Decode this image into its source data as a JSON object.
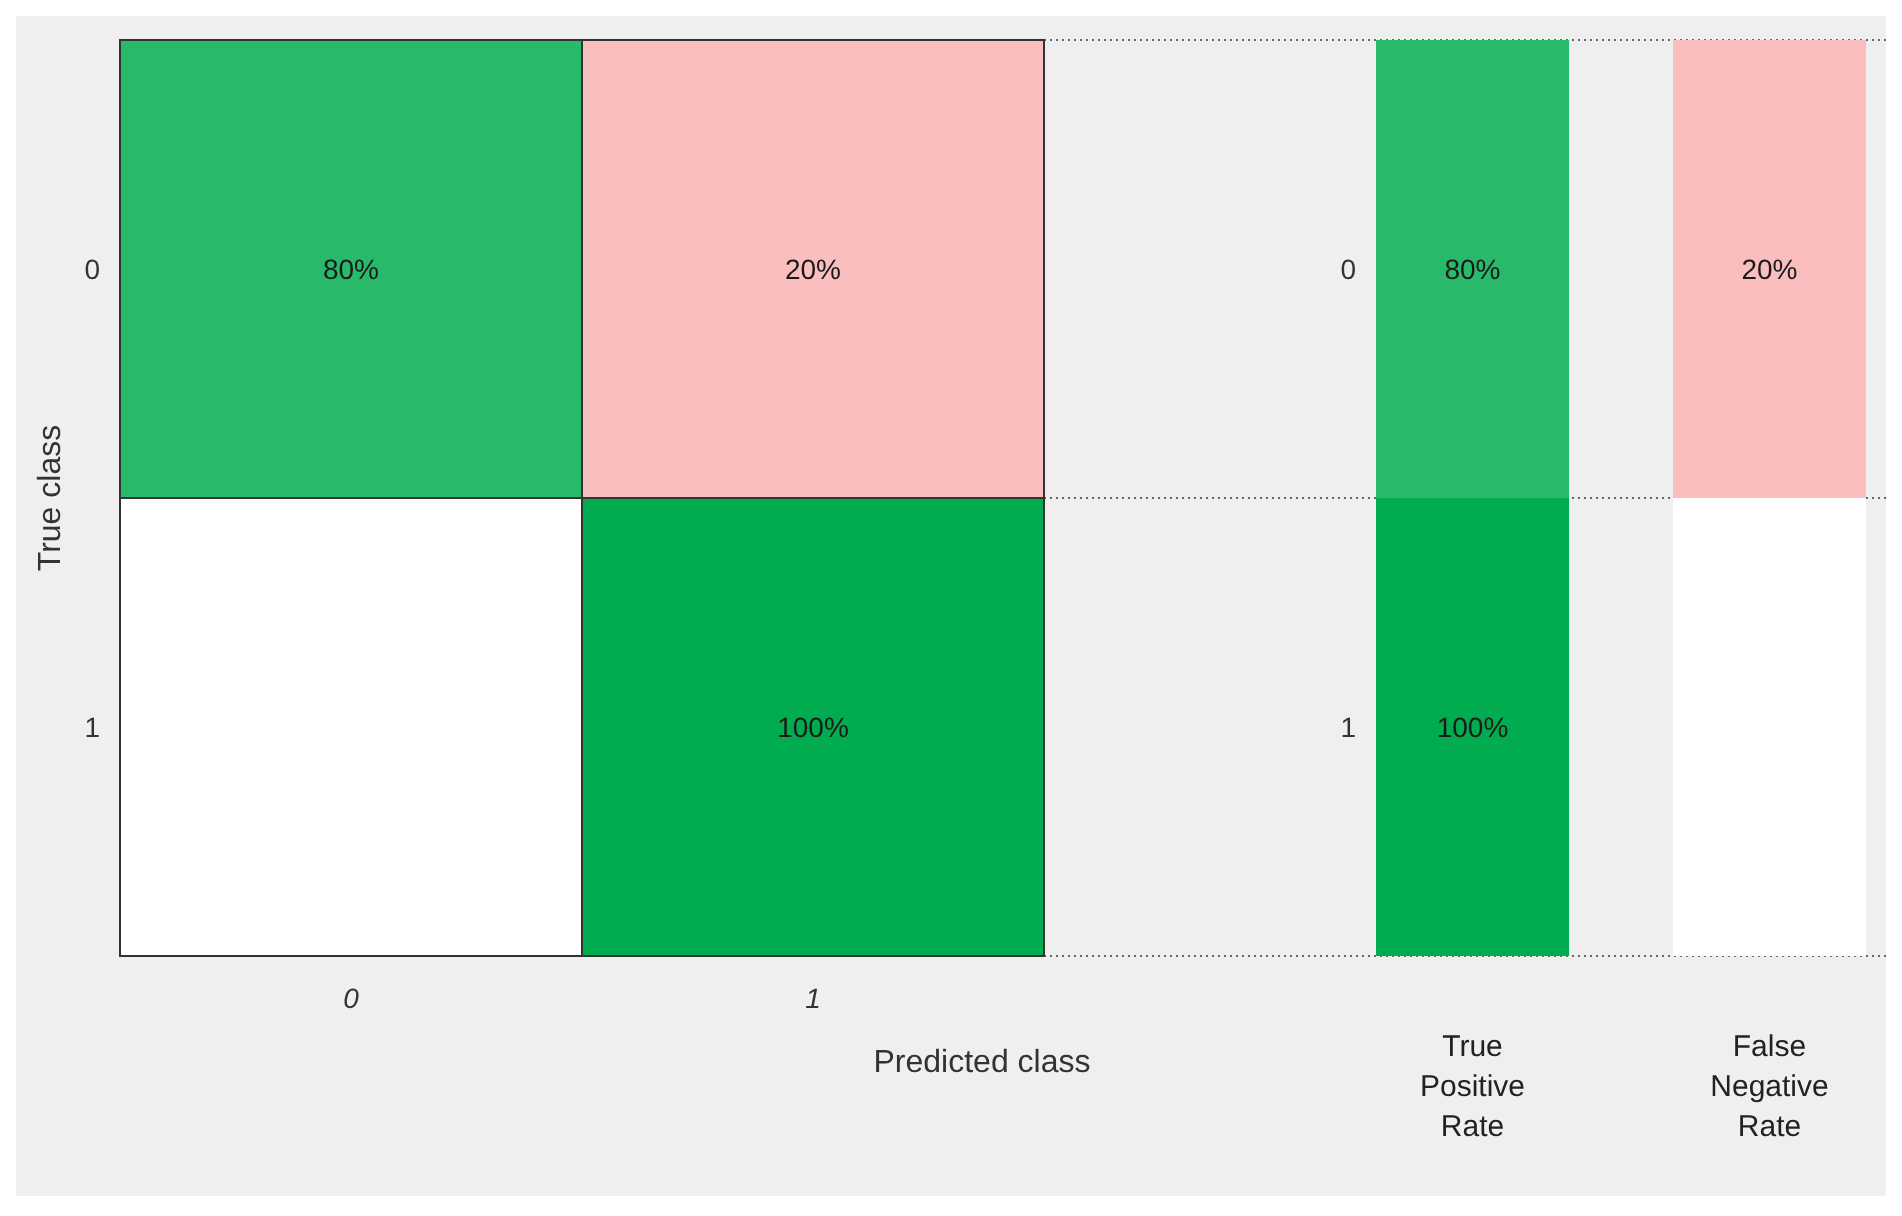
{
  "chart_data": [
    {
      "type": "heatmap",
      "xlabel": "Predicted class",
      "ylabel": "True class",
      "categories": [
        "0",
        "1"
      ],
      "y_categories": [
        "0",
        "1"
      ],
      "cells": [
        [
          80,
          20
        ],
        [
          null,
          100
        ]
      ],
      "cell_labels": [
        [
          "80%",
          "20%"
        ],
        [
          null,
          "100%"
        ]
      ]
    },
    {
      "type": "heatmap",
      "categories": [
        "True Positive Rate",
        "False Negative Rate"
      ],
      "y_categories": [
        "0",
        "1"
      ],
      "cells": [
        [
          80,
          20
        ],
        [
          100,
          null
        ]
      ],
      "cell_labels": [
        [
          "80%",
          "20%"
        ],
        [
          "100%",
          null
        ]
      ]
    }
  ]
}
